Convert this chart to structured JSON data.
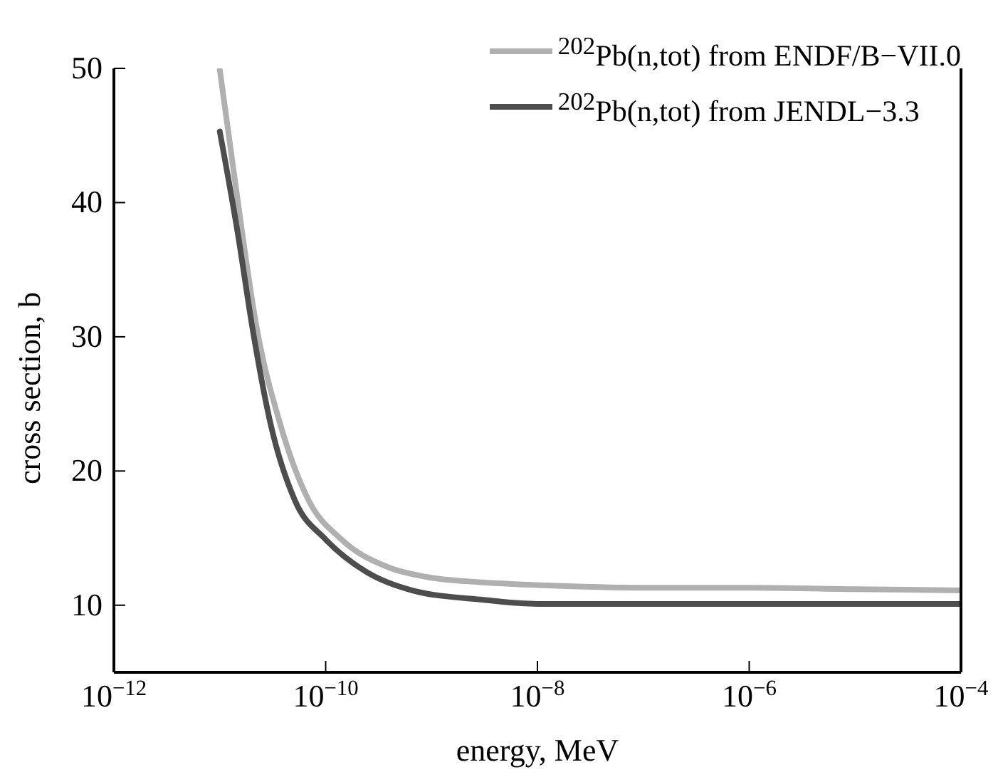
{
  "chart_data": {
    "type": "line",
    "xlabel": "energy, MeV",
    "ylabel": "cross section, b",
    "log": "x",
    "xlim": [
      1e-12,
      0.0001
    ],
    "xticks": [
      {
        "value": 1e-12,
        "label": "10$^{−12}$"
      },
      {
        "value": 1e-10,
        "label": "10$^{−10}$"
      },
      {
        "value": 1e-08,
        "label": "10$^{−8}$"
      },
      {
        "value": 1e-06,
        "label": "10$^{−6}$"
      },
      {
        "value": 0.0001,
        "label": "10$^{−4}$"
      }
    ],
    "ylim": [
      5,
      50
    ],
    "yticks": [
      10,
      20,
      30,
      40,
      50
    ],
    "grid": false,
    "legend": "top right",
    "line_style": "solid",
    "marker": "none",
    "series": [
      {
        "name": "$^{202}$Pb(n,tot) from ENDF/B−VII.0",
        "color": "#b0b0b0",
        "x": [
          1e-11,
          1.41e-11,
          2.24e-11,
          3.72e-11,
          6.92e-11,
          1.41e-10,
          3.98e-10,
          9.12e-10,
          3.09e-09,
          1e-08,
          1e-07,
          1e-06,
          1e-05,
          0.0001
        ],
        "values": [
          49.9,
          41.3,
          30.6,
          23.5,
          17.8,
          14.9,
          12.8,
          12.1,
          11.7,
          11.5,
          11.3,
          11.3,
          11.2,
          11.1
        ]
      },
      {
        "name": "$^{202}$Pb(n,tot) from JENDL−3.3",
        "color": "#4d4d4d",
        "x": [
          1e-11,
          1.48e-11,
          2.04e-11,
          3.02e-11,
          5.13e-11,
          1e-10,
          2.4e-10,
          6.61e-10,
          3.09e-09,
          1e-08,
          1e-07,
          1e-06,
          1e-05,
          0.0001
        ],
        "values": [
          45.3,
          37.7,
          30.6,
          23.5,
          17.8,
          14.9,
          12.5,
          11.1,
          10.4,
          10.1,
          10.1,
          10.1,
          10.1,
          10.1
        ]
      }
    ]
  }
}
